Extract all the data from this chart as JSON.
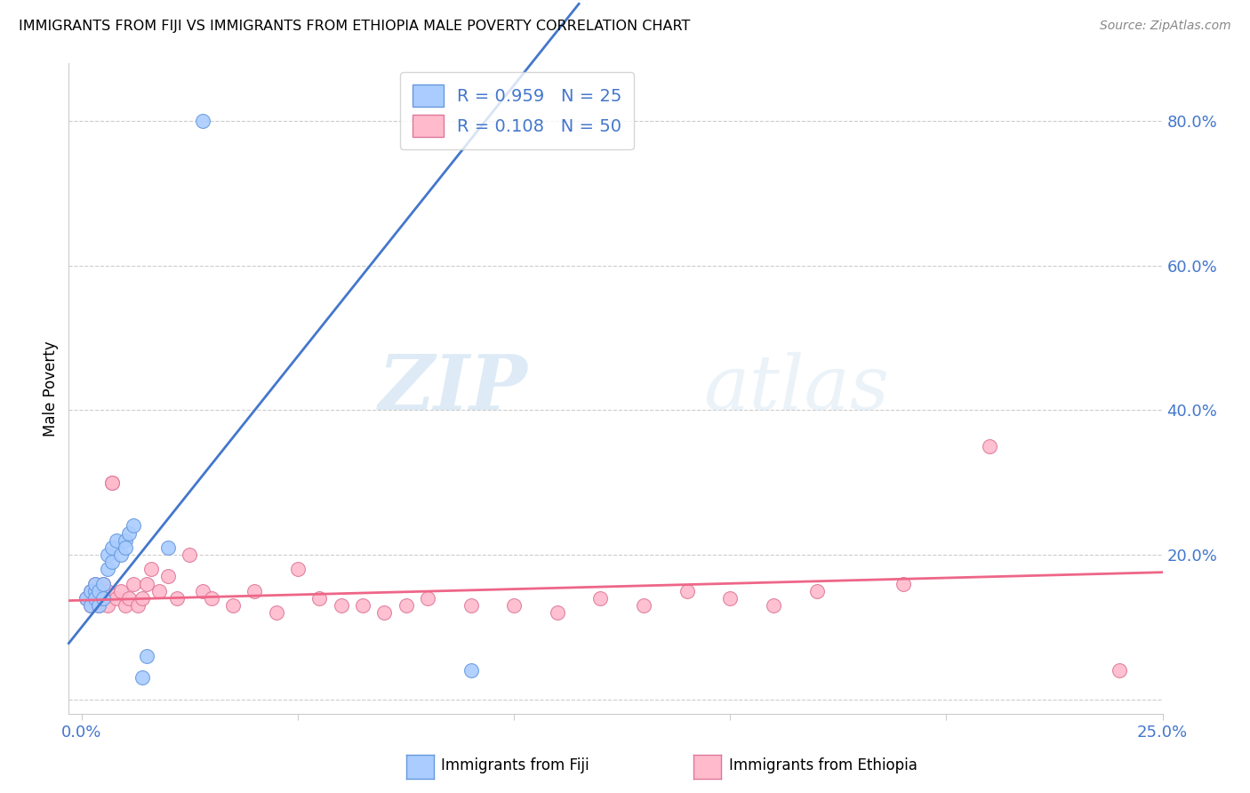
{
  "title": "IMMIGRANTS FROM FIJI VS IMMIGRANTS FROM ETHIOPIA MALE POVERTY CORRELATION CHART",
  "source": "Source: ZipAtlas.com",
  "ylabel": "Male Poverty",
  "x_min": 0.0,
  "x_max": 0.25,
  "y_min": -0.02,
  "y_max": 0.88,
  "fiji_line_color": "#4477cc",
  "fiji_scatter_face": "#aaccff",
  "fiji_scatter_edge": "#6699dd",
  "ethiopia_line_color": "#ee6688",
  "ethiopia_scatter_face": "#ffbbcc",
  "ethiopia_scatter_edge": "#dd7799",
  "background_color": "#ffffff",
  "grid_color": "#cccccc",
  "fiji_x": [
    0.001,
    0.002,
    0.002,
    0.003,
    0.003,
    0.003,
    0.004,
    0.004,
    0.005,
    0.005,
    0.006,
    0.006,
    0.007,
    0.007,
    0.008,
    0.009,
    0.01,
    0.01,
    0.011,
    0.012,
    0.014,
    0.015,
    0.02,
    0.028,
    0.09
  ],
  "fiji_y": [
    0.14,
    0.15,
    0.13,
    0.15,
    0.14,
    0.16,
    0.13,
    0.15,
    0.16,
    0.14,
    0.2,
    0.18,
    0.21,
    0.19,
    0.22,
    0.2,
    0.22,
    0.21,
    0.23,
    0.24,
    0.03,
    0.06,
    0.21,
    0.8,
    0.04
  ],
  "ethiopia_x": [
    0.001,
    0.002,
    0.002,
    0.003,
    0.003,
    0.004,
    0.004,
    0.005,
    0.005,
    0.006,
    0.006,
    0.007,
    0.007,
    0.008,
    0.009,
    0.01,
    0.011,
    0.012,
    0.013,
    0.014,
    0.015,
    0.016,
    0.018,
    0.02,
    0.022,
    0.025,
    0.028,
    0.03,
    0.035,
    0.04,
    0.045,
    0.05,
    0.055,
    0.06,
    0.065,
    0.07,
    0.075,
    0.08,
    0.09,
    0.1,
    0.11,
    0.12,
    0.13,
    0.14,
    0.15,
    0.16,
    0.17,
    0.19,
    0.21,
    0.24
  ],
  "ethiopia_y": [
    0.14,
    0.13,
    0.15,
    0.14,
    0.16,
    0.13,
    0.15,
    0.14,
    0.16,
    0.13,
    0.15,
    0.3,
    0.3,
    0.14,
    0.15,
    0.13,
    0.14,
    0.16,
    0.13,
    0.14,
    0.16,
    0.18,
    0.15,
    0.17,
    0.14,
    0.2,
    0.15,
    0.14,
    0.13,
    0.15,
    0.12,
    0.18,
    0.14,
    0.13,
    0.13,
    0.12,
    0.13,
    0.14,
    0.13,
    0.13,
    0.12,
    0.14,
    0.13,
    0.15,
    0.14,
    0.13,
    0.15,
    0.16,
    0.35,
    0.04
  ],
  "watermark_zip": "ZIP",
  "watermark_atlas": "atlas"
}
